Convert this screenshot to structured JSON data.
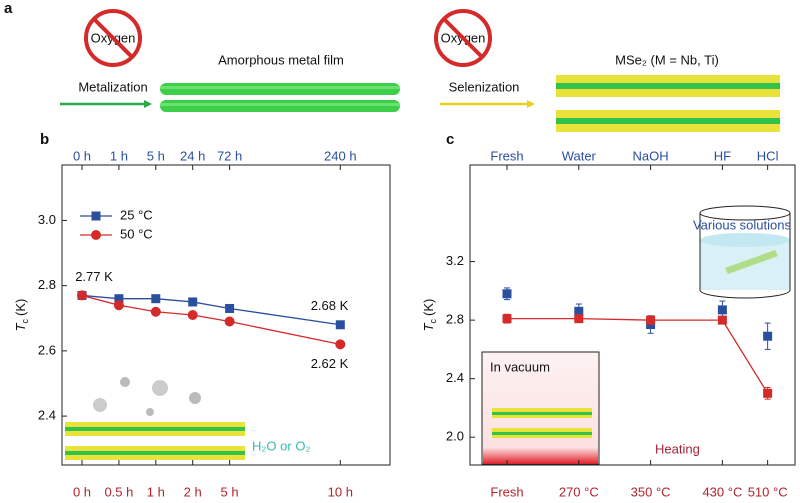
{
  "panel_a": {
    "label": "a",
    "oxygen_1": "Oxygen",
    "oxygen_2": "Oxygen",
    "film": "Amorphous metal film",
    "step_1": "Metalization",
    "step_2": "Selenization",
    "product": "MSe₂ (M = Nb, Ti)"
  },
  "chart_data": [
    {
      "type": "line",
      "panel": "b",
      "categories": [
        "0 h",
        "0.5 h",
        "1 h",
        "2 h",
        "5 h",
        "10 h"
      ],
      "top_categories": [
        "0 h",
        "1 h",
        "5 h",
        "24 h",
        "72 h",
        "240 h"
      ],
      "ylabel": "T",
      "ylabel_sub": "c",
      "ylabel_unit": "(K)",
      "ylim": [
        2.25,
        3.17
      ],
      "yticks": [
        2.4,
        2.6,
        2.8,
        {
          "value": 3,
          "label": "3.0"
        }
      ],
      "legend": "upper left",
      "annotation": "H₂O or O₂",
      "series": [
        {
          "name": "25 °C",
          "color": "#2a4f9e",
          "marker": "square",
          "values": [
            2.77,
            2.76,
            2.76,
            2.75,
            2.73,
            2.68
          ],
          "value_labels": [
            "2.77 K",
            null,
            null,
            null,
            null,
            "2.68 K"
          ]
        },
        {
          "name": "50 °C",
          "color": "#d42a2a",
          "marker": "circle",
          "values": [
            2.77,
            2.74,
            2.72,
            2.71,
            2.69,
            2.62
          ],
          "value_labels": [
            null,
            null,
            null,
            null,
            null,
            "2.62 K"
          ]
        }
      ]
    },
    {
      "type": "errorbar",
      "panel": "c",
      "categories": [
        "Fresh",
        "270 °C",
        "350 °C",
        "430 °C",
        "510 °C"
      ],
      "top_categories": [
        "Fresh",
        "Water",
        "NaOH",
        "HF",
        "HCl"
      ],
      "ylabel": "T",
      "ylabel_sub": "c",
      "ylabel_unit": "(K)",
      "ylim": [
        1.81,
        3.86
      ],
      "yticks": [
        {
          "value": 2,
          "label": "2.0"
        },
        2.4,
        2.8,
        3.2
      ],
      "annotations": [
        "Various solutions",
        "In vacuum",
        "Heating"
      ],
      "series": [
        {
          "color": "#2a4f9e",
          "marker": "square",
          "connect": false,
          "values": [
            2.98,
            2.86,
            2.77,
            2.87,
            2.69
          ],
          "errors": [
            0.04,
            0.05,
            0.06,
            0.06,
            0.09
          ]
        },
        {
          "color": "#d42a2a",
          "marker": "square",
          "connect": true,
          "values": [
            2.81,
            2.81,
            2.8,
            2.8,
            2.3
          ],
          "errors": [
            0.03,
            0.02,
            0.02,
            0.02,
            0.04
          ]
        }
      ]
    }
  ]
}
